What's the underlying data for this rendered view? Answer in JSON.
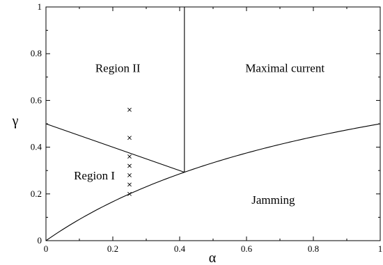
{
  "chart_data": {
    "type": "line",
    "xlabel": "α",
    "ylabel": "γ",
    "xlim": [
      0,
      1
    ],
    "ylim": [
      0,
      1
    ],
    "x_ticks": [
      0,
      0.2,
      0.4,
      0.6,
      0.8,
      1
    ],
    "x_tick_labels": [
      "0",
      "0.2",
      "0.4",
      "0.6",
      "0.8",
      "1"
    ],
    "y_ticks": [
      0,
      0.2,
      0.4,
      0.6,
      0.8,
      1
    ],
    "y_tick_labels": [
      "0",
      "0.2",
      "0.4",
      "0.6",
      "0.8",
      "1"
    ],
    "grid": false,
    "legend": "none",
    "series": [
      {
        "id": "jamming-boundary",
        "style": "line",
        "x": [
          0,
          0.05,
          0.1,
          0.15,
          0.2,
          0.25,
          0.3,
          0.35,
          0.4142,
          0.5,
          0.6,
          0.7,
          0.8,
          0.9,
          1.0
        ],
        "y": [
          0,
          0.0488,
          0.0955,
          0.1401,
          0.183,
          0.2236,
          0.2626,
          0.3,
          0.2929,
          0.3333,
          0.375,
          0.4118,
          0.4444,
          0.4737,
          0.5
        ]
      },
      {
        "id": "region-boundary-diagonal",
        "style": "line",
        "x": [
          0,
          0.4142
        ],
        "y": [
          0.5,
          0.2929
        ]
      },
      {
        "id": "region-boundary-vertical",
        "style": "line",
        "x": [
          0.4142,
          0.4142
        ],
        "y": [
          0.2929,
          1
        ]
      },
      {
        "id": "simulation-points",
        "style": "marker-x",
        "x": [
          0.25,
          0.25,
          0.25,
          0.25,
          0.25,
          0.25,
          0.25
        ],
        "y": [
          0.2,
          0.24,
          0.28,
          0.32,
          0.36,
          0.44,
          0.56
        ]
      }
    ],
    "annotations": [
      {
        "text": "Region II",
        "x": 0.215,
        "y": 0.74
      },
      {
        "text": "Maximal current",
        "x": 0.715,
        "y": 0.74
      },
      {
        "text": "Region I",
        "x": 0.145,
        "y": 0.28
      },
      {
        "text": "Jamming",
        "x": 0.68,
        "y": 0.175
      }
    ]
  }
}
